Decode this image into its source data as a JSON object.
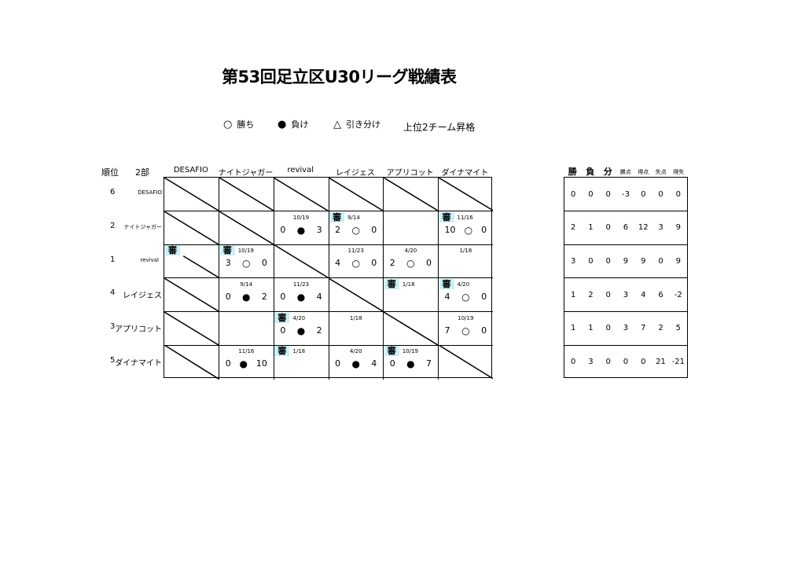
{
  "title": "第53回足立区U30リーグ戦績表",
  "legend": {
    "win_symbol": "○",
    "win_label": "勝ち",
    "loss_symbol": "●",
    "loss_label": "負け",
    "draw_symbol": "△",
    "draw_label": "引き分け",
    "promotion_note": "上位2チーム昇格"
  },
  "header": {
    "rank_label": "順位",
    "division": "2部"
  },
  "columns": [
    "DESAFIO",
    "ナイトジャガー",
    "revival",
    "レイジェス",
    "アプリコット",
    "ダイナマイト"
  ],
  "referee_label": "審",
  "standings_headers": [
    "勝",
    "負",
    "分",
    "勝点",
    "得点",
    "失点",
    "得失"
  ],
  "rows": [
    {
      "rank": "6",
      "team": "DESAFIO",
      "cells": [
        {
          "diag": true
        },
        {
          "diag": true
        },
        {
          "diag": true
        },
        {
          "diag": true
        },
        {
          "diag": true
        },
        {
          "diag": true
        }
      ],
      "stats": [
        "0",
        "0",
        "0",
        "-3",
        "0",
        "0",
        "0"
      ]
    },
    {
      "rank": "2",
      "team": "ナイトジャガー",
      "cells": [
        {
          "diag": true
        },
        {
          "diag": true
        },
        {
          "date": "10/19",
          "a": "0",
          "mark": "●",
          "b": "3"
        },
        {
          "ref": true,
          "date": "9/14",
          "a": "2",
          "mark": "○",
          "b": "0"
        },
        {},
        {
          "ref": true,
          "date": "11/16",
          "a": "10",
          "mark": "○",
          "b": "0"
        }
      ],
      "stats": [
        "2",
        "1",
        "0",
        "6",
        "12",
        "3",
        "9"
      ]
    },
    {
      "rank": "1",
      "team": "revival",
      "cells": [
        {
          "diag": true,
          "ref": true
        },
        {
          "ref": true,
          "date": "10/19",
          "a": "3",
          "mark": "○",
          "b": "0"
        },
        {
          "diag": true
        },
        {
          "date": "11/23",
          "a": "4",
          "mark": "○",
          "b": "0"
        },
        {
          "date": "4/20",
          "a": "2",
          "mark": "○",
          "b": "0"
        },
        {
          "date": "1/18"
        }
      ],
      "stats": [
        "3",
        "0",
        "0",
        "9",
        "9",
        "0",
        "9"
      ]
    },
    {
      "rank": "4",
      "team": "レイジェス",
      "cells": [
        {
          "diag": true
        },
        {
          "date": "9/14",
          "a": "0",
          "mark": "●",
          "b": "2"
        },
        {
          "date": "11/23",
          "a": "0",
          "mark": "●",
          "b": "4"
        },
        {
          "diag": true
        },
        {
          "ref": true,
          "date": "1/18"
        },
        {
          "ref": true,
          "date": "4/20",
          "a": "4",
          "mark": "○",
          "b": "0"
        }
      ],
      "stats": [
        "1",
        "2",
        "0",
        "3",
        "4",
        "6",
        "-2"
      ]
    },
    {
      "rank": "3",
      "team": "アプリコット",
      "cells": [
        {
          "diag": true
        },
        {},
        {
          "ref": true,
          "date": "4/20",
          "a": "0",
          "mark": "●",
          "b": "2"
        },
        {
          "date": "1/18"
        },
        {
          "diag": true
        },
        {
          "date": "10/19",
          "a": "7",
          "mark": "○",
          "b": "0"
        }
      ],
      "stats": [
        "1",
        "1",
        "0",
        "3",
        "7",
        "2",
        "5"
      ]
    },
    {
      "rank": "5",
      "team": "ダイナマイト",
      "cells": [
        {
          "diag": true
        },
        {
          "date": "11/16",
          "a": "0",
          "mark": "●",
          "b": "10"
        },
        {
          "ref": true,
          "date": "1/18"
        },
        {
          "date": "4/20",
          "a": "0",
          "mark": "●",
          "b": "4"
        },
        {
          "ref": true,
          "date": "10/19",
          "a": "0",
          "mark": "●",
          "b": "7"
        },
        {
          "diag": true
        }
      ],
      "stats": [
        "0",
        "3",
        "0",
        "0",
        "0",
        "21",
        "-21"
      ]
    }
  ],
  "colors": {
    "referee_bg": "#c8f0f6"
  }
}
